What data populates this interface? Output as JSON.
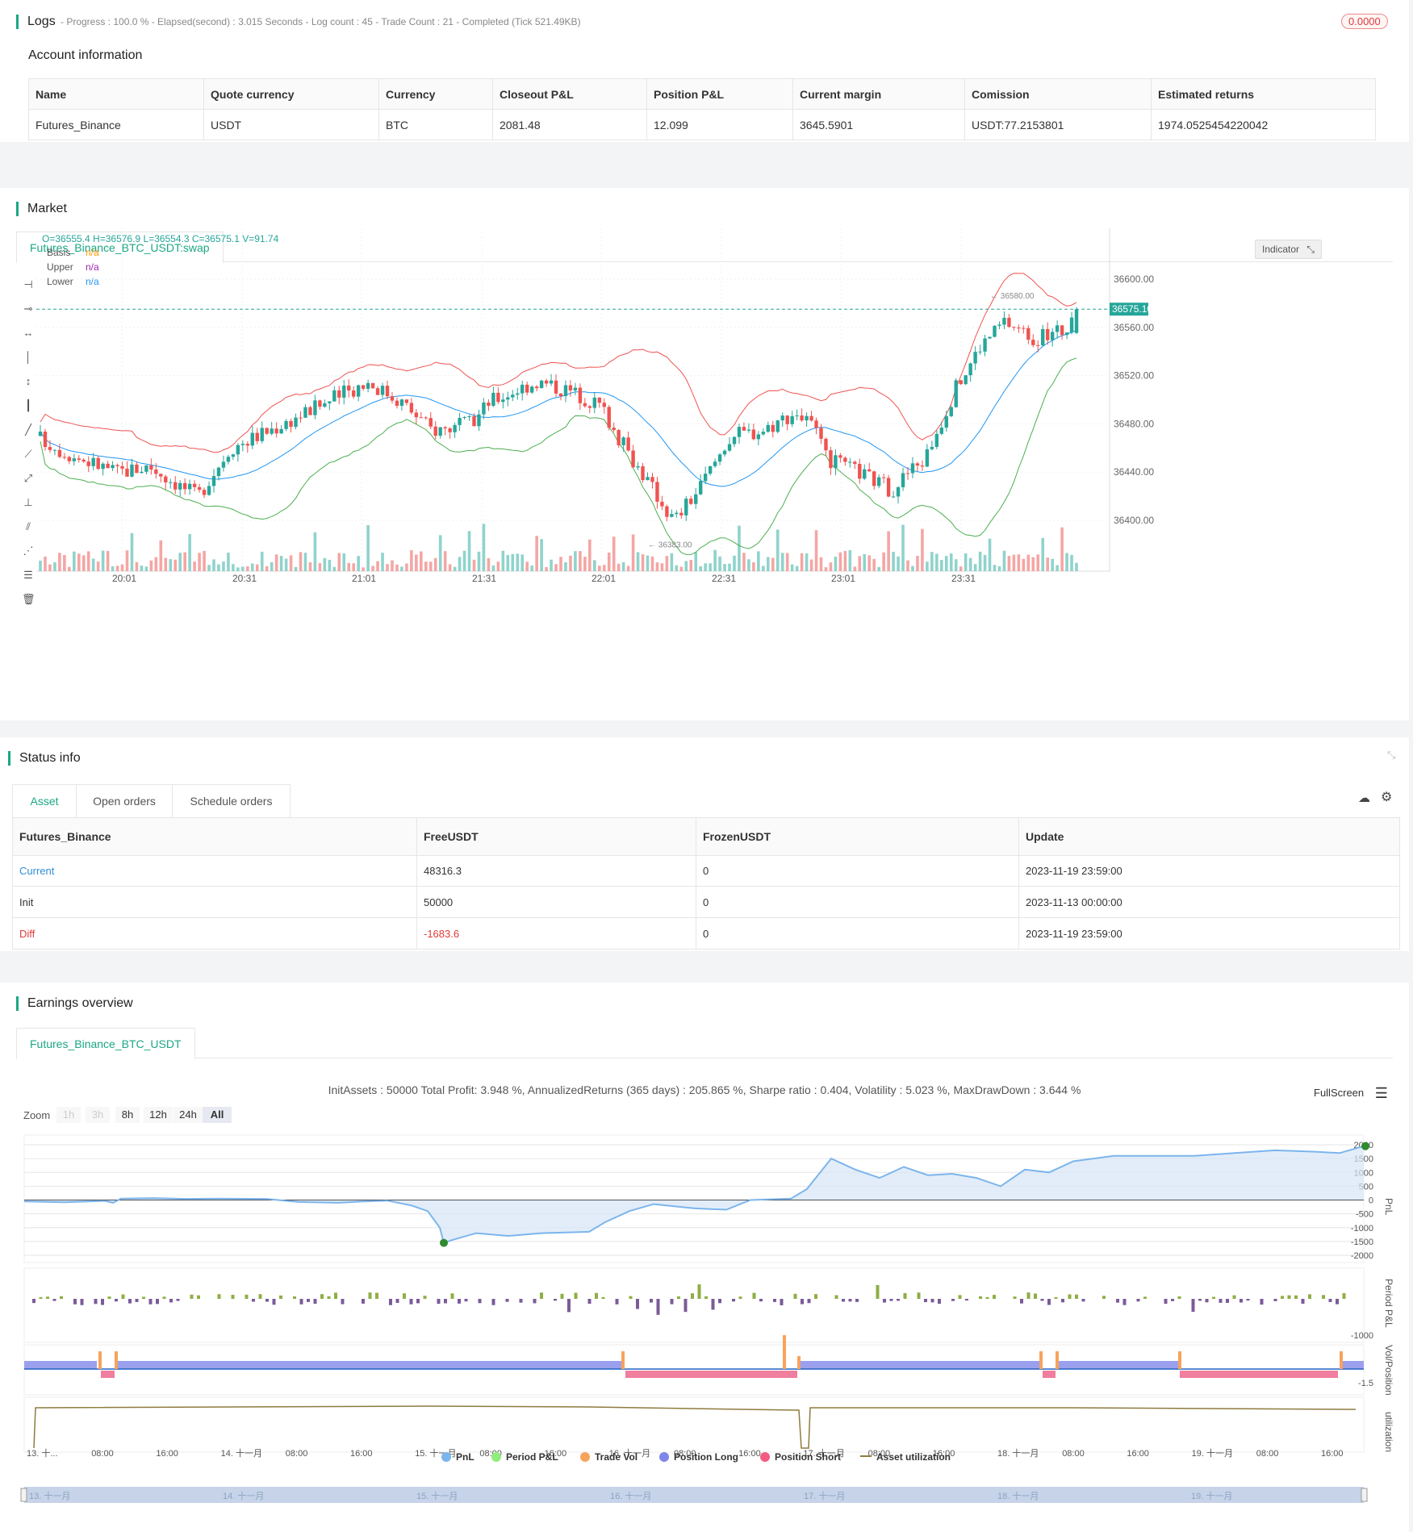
{
  "logs": {
    "title": "Logs",
    "progress": "- Progress : 100.0 % - Elapsed(second) : 3.015  Seconds - Log count : 45 - Trade Count : 21 - Completed (Tick 521.49KB)",
    "badge": "0.0000"
  },
  "account": {
    "title": "Account information",
    "headers": [
      "Name",
      "Quote currency",
      "Currency",
      "Closeout P&L",
      "Position P&L",
      "Current margin",
      "Comission",
      "Estimated returns"
    ],
    "row": [
      "Futures_Binance",
      "USDT",
      "BTC",
      "2081.48",
      "12.099",
      "3645.5901",
      "USDT:77.2153801",
      "1974.0525454220042"
    ]
  },
  "market": {
    "title": "Market",
    "tab": "Futures_Binance_BTC_USDT:swap",
    "ohlc": "O=36555.4 H=36576.9 L=36554.3 C=36575.1 V=91.74",
    "legend": [
      {
        "name": "Basis",
        "value": "n/a",
        "color": "#ff9800"
      },
      {
        "name": "Upper",
        "value": "n/a",
        "color": "#9c27b0"
      },
      {
        "name": "Lower",
        "value": "n/a",
        "color": "#2196f3"
      }
    ],
    "indicator_btn": "Indicator",
    "price_ticks": [
      "36600.00",
      "36560.00",
      "36520.00",
      "36480.00",
      "36440.00",
      "36400.00"
    ],
    "last_price": "36575.10",
    "high_mark": "36580.00",
    "low_mark": "36383.00",
    "time_ticks": [
      "20:01",
      "20:31",
      "21:01",
      "21:31",
      "22:01",
      "22:31",
      "23:01",
      "23:31"
    ]
  },
  "status": {
    "title": "Status info",
    "tabs": [
      "Asset",
      "Open orders",
      "Schedule orders"
    ],
    "headers": [
      "Futures_Binance",
      "FreeUSDT",
      "FrozenUSDT",
      "Update"
    ],
    "rows": [
      [
        "Current",
        "48316.3",
        "0",
        "2023-11-19 23:59:00"
      ],
      [
        "Init",
        "50000",
        "0",
        "2023-11-13 00:00:00"
      ],
      [
        "Diff",
        "-1683.6",
        "0",
        "2023-11-19 23:59:00"
      ]
    ]
  },
  "earnings": {
    "title": "Earnings overview",
    "tab": "Futures_Binance_BTC_USDT",
    "summary": "InitAssets : 50000 Total Profit: 3.948 %, AnnualizedReturns (365 days) : 205.865 %, Sharpe ratio : 0.404, Volatility : 5.023 %, MaxDrawDown : 3.644 %",
    "fullscreen": "FullScreen",
    "zoom_label": "Zoom",
    "zoom_buttons": [
      "1h",
      "3h",
      "8h",
      "12h",
      "24h",
      "All"
    ],
    "pnl_ticks": [
      "2000",
      "1500",
      "1000",
      "500",
      "0",
      "-500",
      "-1000",
      "-1500",
      "-2000"
    ],
    "axis_titles": [
      "PnL",
      "Period P&L",
      "Vol/Position",
      "utilization"
    ],
    "period_tick": "-1000",
    "vol_tick": "-1.5",
    "x_ticks": [
      "13. 十...",
      "08:00",
      "16:00",
      "14. 十一月",
      "08:00",
      "16:00",
      "15. 十一月",
      "08:00",
      "16:00",
      "16. 十一月",
      "08:00",
      "16:00",
      "17. 十一月",
      "08:00",
      "16:00",
      "18. 十一月",
      "08:00",
      "16:00",
      "19. 十一月",
      "08:00",
      "16:00"
    ],
    "nav_ticks": [
      "13. 十一月",
      "14. 十一月",
      "15. 十一月",
      "16. 十一月",
      "17. 十一月",
      "18. 十一月",
      "19. 十一月"
    ],
    "legend": [
      {
        "name": "PnL",
        "color": "#7cb5ec"
      },
      {
        "name": "Period P&L",
        "color": "#90ed7d"
      },
      {
        "name": "Trade Vol",
        "color": "#f7a35c"
      },
      {
        "name": "Position Long",
        "color": "#8085e9"
      },
      {
        "name": "Position Short",
        "color": "#f15c80"
      },
      {
        "name": "Asset utilization",
        "color": "#8d7b3f"
      }
    ]
  }
}
